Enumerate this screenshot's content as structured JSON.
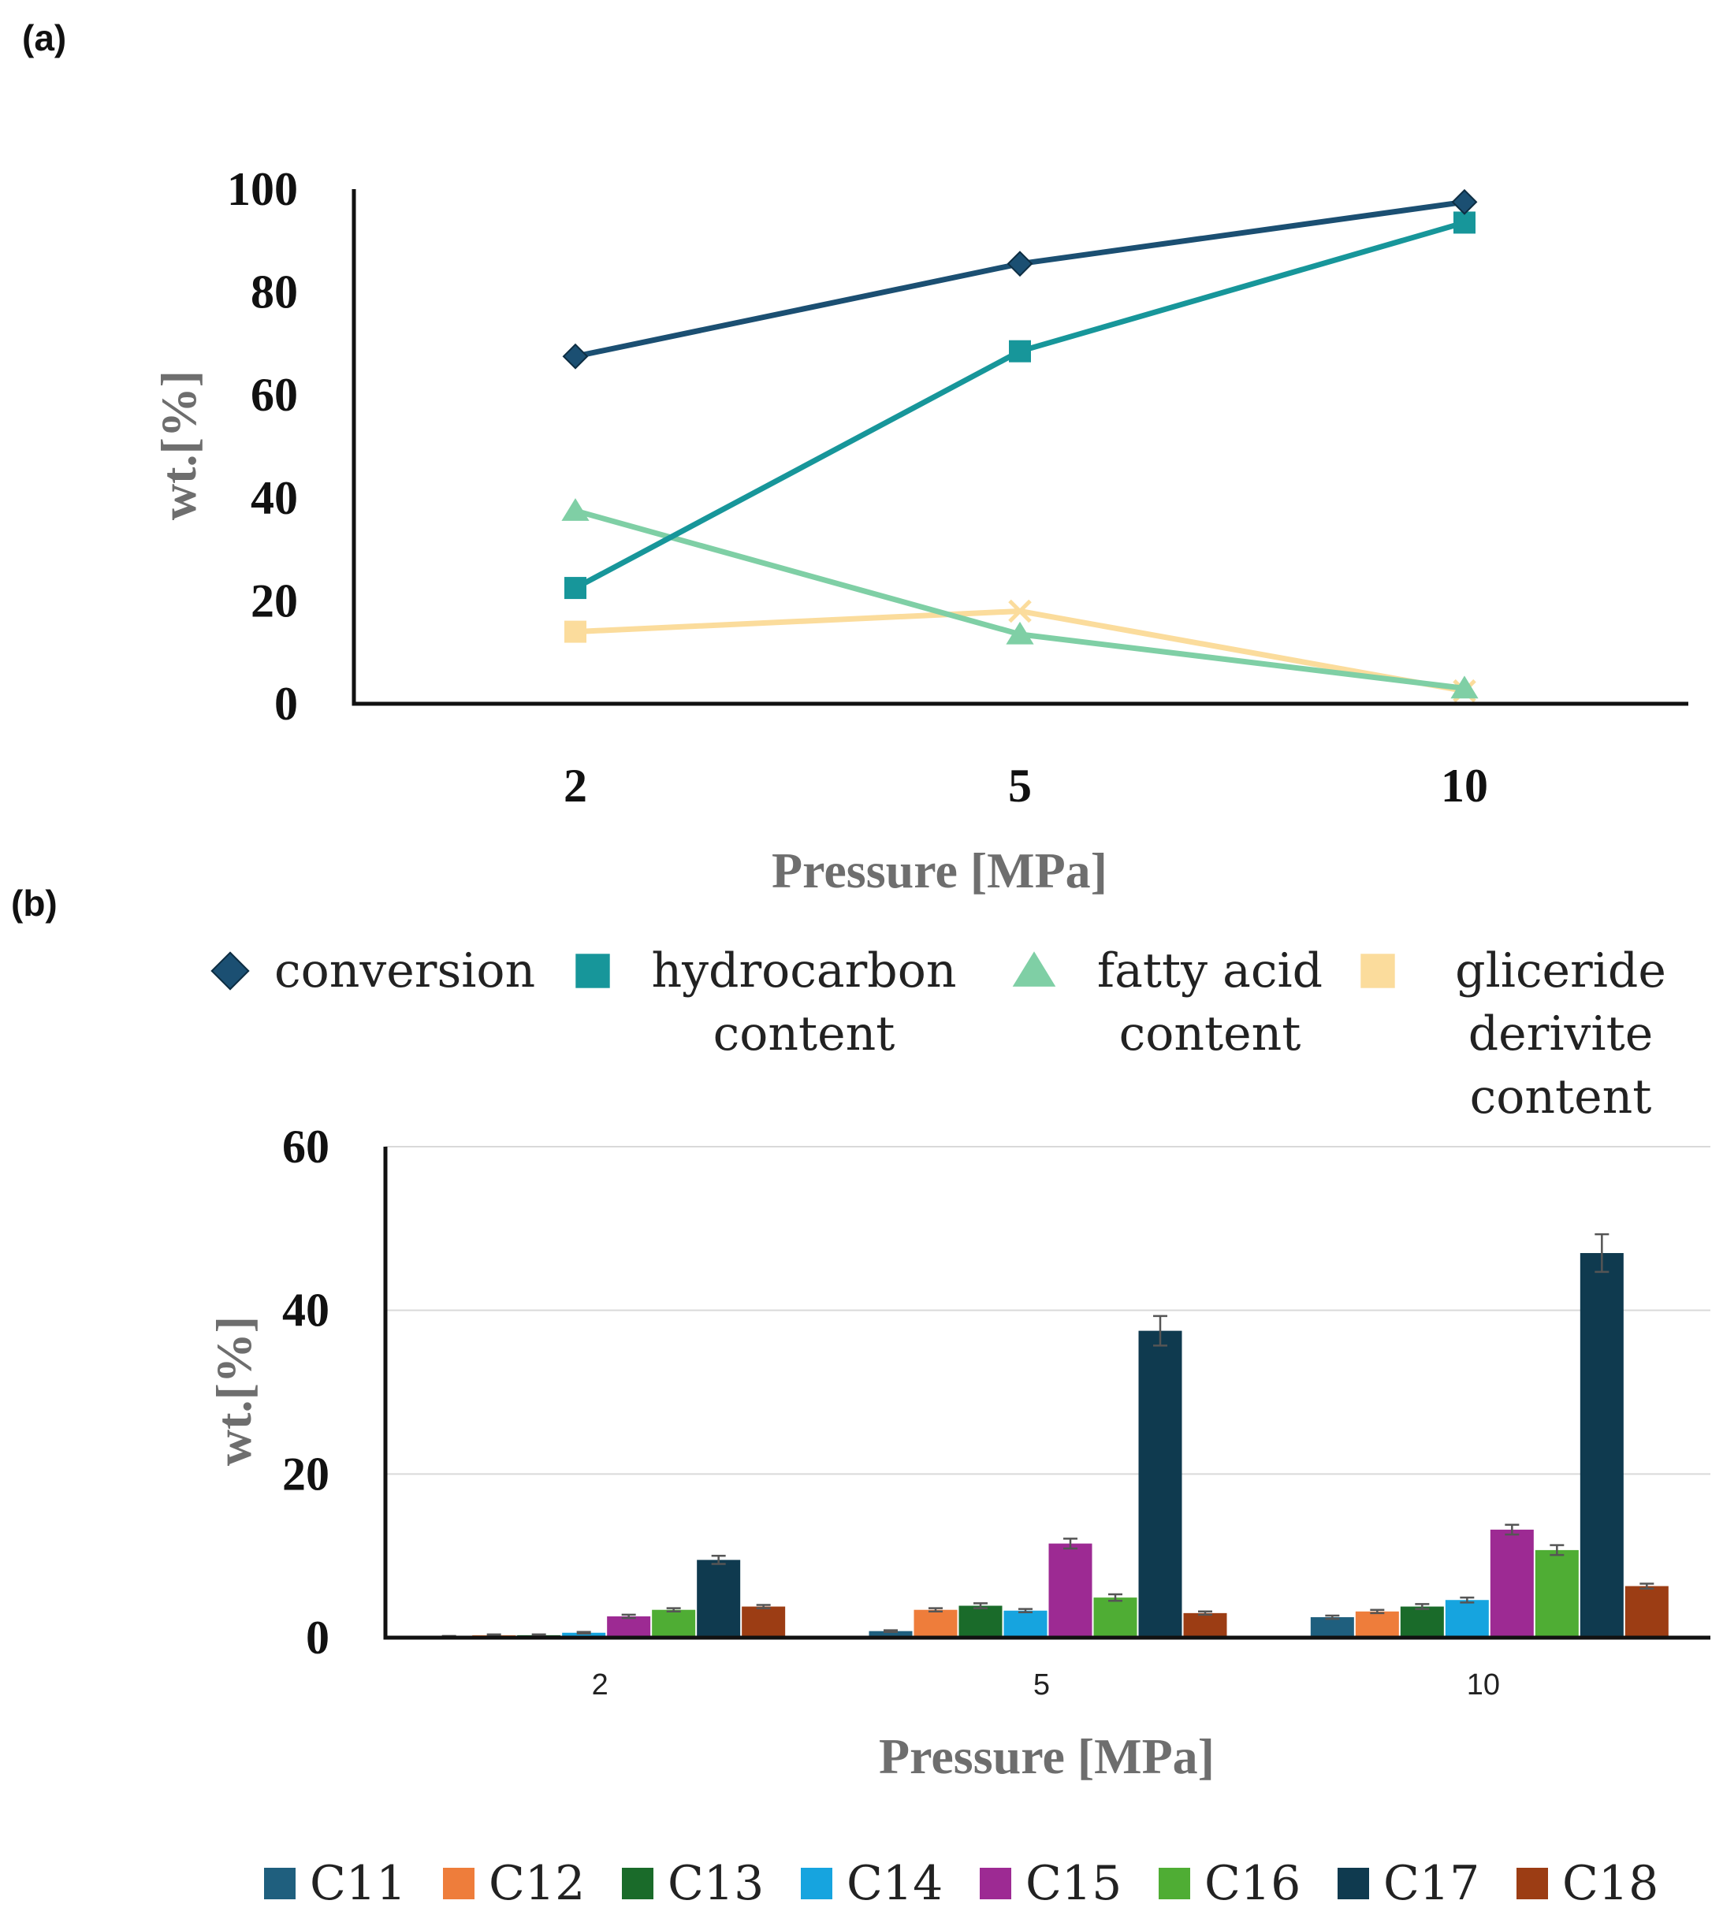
{
  "chart_data": [
    {
      "panel": "(a)",
      "type": "line",
      "categories": [
        "2",
        "5",
        "10"
      ],
      "xlabel": "Pressure [MPa]",
      "ylabel": "wt.[%]",
      "ylim": [
        0,
        100
      ],
      "yticks": [
        "0",
        "20",
        "40",
        "60",
        "80",
        "100"
      ],
      "grid": false,
      "legend_position": "bottom",
      "series": [
        {
          "name": "conversion",
          "legend": [
            "conversion"
          ],
          "marker": "diamond",
          "color": "#1b4f72",
          "values": [
            67.5,
            85.5,
            97.5
          ]
        },
        {
          "name": "hydrocarbon content",
          "legend": [
            "hydrocarbon",
            "content"
          ],
          "marker": "square",
          "color": "#17969a",
          "values": [
            22.5,
            68.5,
            93.5
          ]
        },
        {
          "name": "fatty acid content",
          "legend": [
            "fatty acid",
            "content"
          ],
          "marker": "triangle",
          "color": "#7fcfa5",
          "values": [
            37.5,
            13.5,
            3
          ]
        },
        {
          "name": "gliceride derivite content",
          "legend": [
            "gliceride",
            "derivite",
            "content"
          ],
          "marker": "cross",
          "color": "#fbdc9c",
          "values": [
            14,
            18,
            2.5
          ]
        }
      ]
    },
    {
      "panel": "(b)",
      "type": "bar",
      "categories": [
        "2",
        "5",
        "10"
      ],
      "xlabel": "Pressure [MPa]",
      "ylabel": "wt.[%]",
      "ylim": [
        0,
        60
      ],
      "yticks": [
        "0",
        "20",
        "40",
        "60"
      ],
      "grid": true,
      "legend_position": "bottom",
      "series": [
        {
          "name": "C11",
          "color": "#1f5f7e",
          "values": [
            0.1,
            0.8,
            2.5
          ],
          "errors": [
            0.1,
            0.1,
            0.2
          ]
        },
        {
          "name": "C12",
          "color": "#ee7d3b",
          "values": [
            0.3,
            3.4,
            3.2
          ],
          "errors": [
            0.1,
            0.2,
            0.2
          ]
        },
        {
          "name": "C13",
          "color": "#1a6b2a",
          "values": [
            0.3,
            3.9,
            3.8
          ],
          "errors": [
            0.1,
            0.3,
            0.3
          ]
        },
        {
          "name": "C14",
          "color": "#16a4df",
          "values": [
            0.6,
            3.3,
            4.6
          ],
          "errors": [
            0.1,
            0.2,
            0.3
          ]
        },
        {
          "name": "C15",
          "color": "#9d2a93",
          "values": [
            2.6,
            11.5,
            13.2
          ],
          "errors": [
            0.2,
            0.6,
            0.6
          ]
        },
        {
          "name": "C16",
          "color": "#4fad34",
          "values": [
            3.4,
            4.9,
            10.7
          ],
          "errors": [
            0.2,
            0.4,
            0.6
          ]
        },
        {
          "name": "C17",
          "color": "#0f3a4f",
          "values": [
            9.5,
            37.5,
            47
          ],
          "errors": [
            0.5,
            1.8,
            2.3
          ]
        },
        {
          "name": "C18",
          "color": "#9c3d14",
          "values": [
            3.8,
            3.0,
            6.3
          ],
          "errors": [
            0.2,
            0.2,
            0.3
          ]
        }
      ]
    }
  ]
}
